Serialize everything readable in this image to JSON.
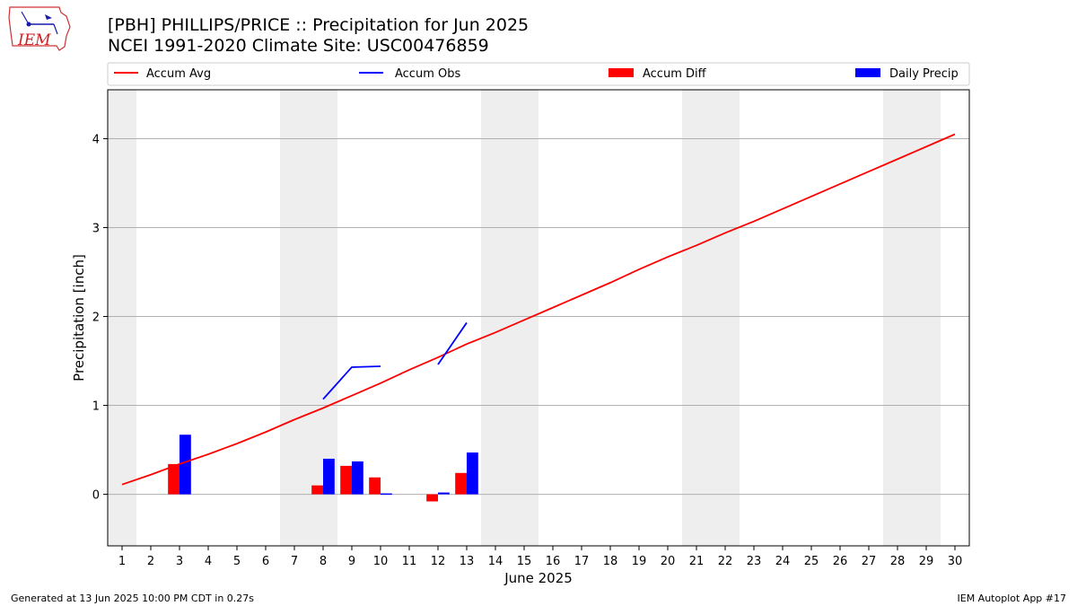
{
  "header": {
    "title_line1": "[PBH] PHILLIPS/PRICE :: Precipitation for Jun 2025",
    "title_line2": "NCEI 1991-2020 Climate Site: USC00476859"
  },
  "logo": {
    "text": "IEM",
    "icon": "iem-iowa-logo-icon"
  },
  "footer": {
    "left": "Generated at 13 Jun 2025 10:00 PM CDT in 0.27s",
    "right": "IEM Autoplot App #17"
  },
  "colors": {
    "avg": "#ff0000",
    "obs": "#0000ff",
    "diff": "#ff0000",
    "daily": "#0000ff",
    "weekend": "#eeeeee",
    "grid": "#b0b0b0"
  },
  "chart_data": {
    "type": "bar",
    "xlabel": "June 2025",
    "ylabel": "Precipitation [inch]",
    "xlim": [
      0.5,
      30.5
    ],
    "ylim": [
      -0.58,
      4.55
    ],
    "x_ticks": [
      1,
      2,
      3,
      4,
      5,
      6,
      7,
      8,
      9,
      10,
      11,
      12,
      13,
      14,
      15,
      16,
      17,
      18,
      19,
      20,
      21,
      22,
      23,
      24,
      25,
      26,
      27,
      28,
      29,
      30
    ],
    "y_ticks": [
      0,
      1,
      2,
      3,
      4
    ],
    "grid": "y",
    "legend_placement": "top",
    "legend": [
      "Accum Avg",
      "Accum Obs",
      "Accum Diff",
      "Daily Precip"
    ],
    "weekend_shading": [
      [
        0.5,
        1.5
      ],
      [
        6.5,
        8.5
      ],
      [
        13.5,
        15.5
      ],
      [
        20.5,
        22.5
      ],
      [
        27.5,
        29.5
      ]
    ],
    "series": [
      {
        "name": "Accum Avg",
        "type": "line",
        "x": [
          1,
          2,
          3,
          4,
          5,
          6,
          7,
          8,
          9,
          10,
          11,
          12,
          13,
          14,
          15,
          16,
          17,
          18,
          19,
          20,
          21,
          22,
          23,
          24,
          25,
          26,
          27,
          28,
          29,
          30
        ],
        "values": [
          0.11,
          0.22,
          0.34,
          0.45,
          0.57,
          0.7,
          0.84,
          0.97,
          1.11,
          1.25,
          1.4,
          1.54,
          1.69,
          1.82,
          1.96,
          2.1,
          2.24,
          2.38,
          2.53,
          2.67,
          2.8,
          2.94,
          3.07,
          3.21,
          3.35,
          3.49,
          3.63,
          3.77,
          3.91,
          4.05
        ]
      },
      {
        "name": "Accum Obs",
        "type": "line",
        "segments": [
          {
            "x": [
              8,
              9,
              10
            ],
            "values": [
              1.07,
              1.43,
              1.44
            ]
          },
          {
            "x": [
              12,
              13
            ],
            "values": [
              1.46,
              1.93
            ]
          }
        ]
      },
      {
        "name": "Accum Diff",
        "type": "bar",
        "x": [
          3,
          8,
          9,
          10,
          12,
          13
        ],
        "values": [
          0.34,
          0.1,
          0.32,
          0.19,
          -0.08,
          0.24
        ]
      },
      {
        "name": "Daily Precip",
        "type": "bar",
        "x": [
          3,
          8,
          9,
          10,
          12,
          13
        ],
        "values": [
          0.67,
          0.4,
          0.37,
          0.01,
          0.02,
          0.47
        ]
      }
    ]
  }
}
